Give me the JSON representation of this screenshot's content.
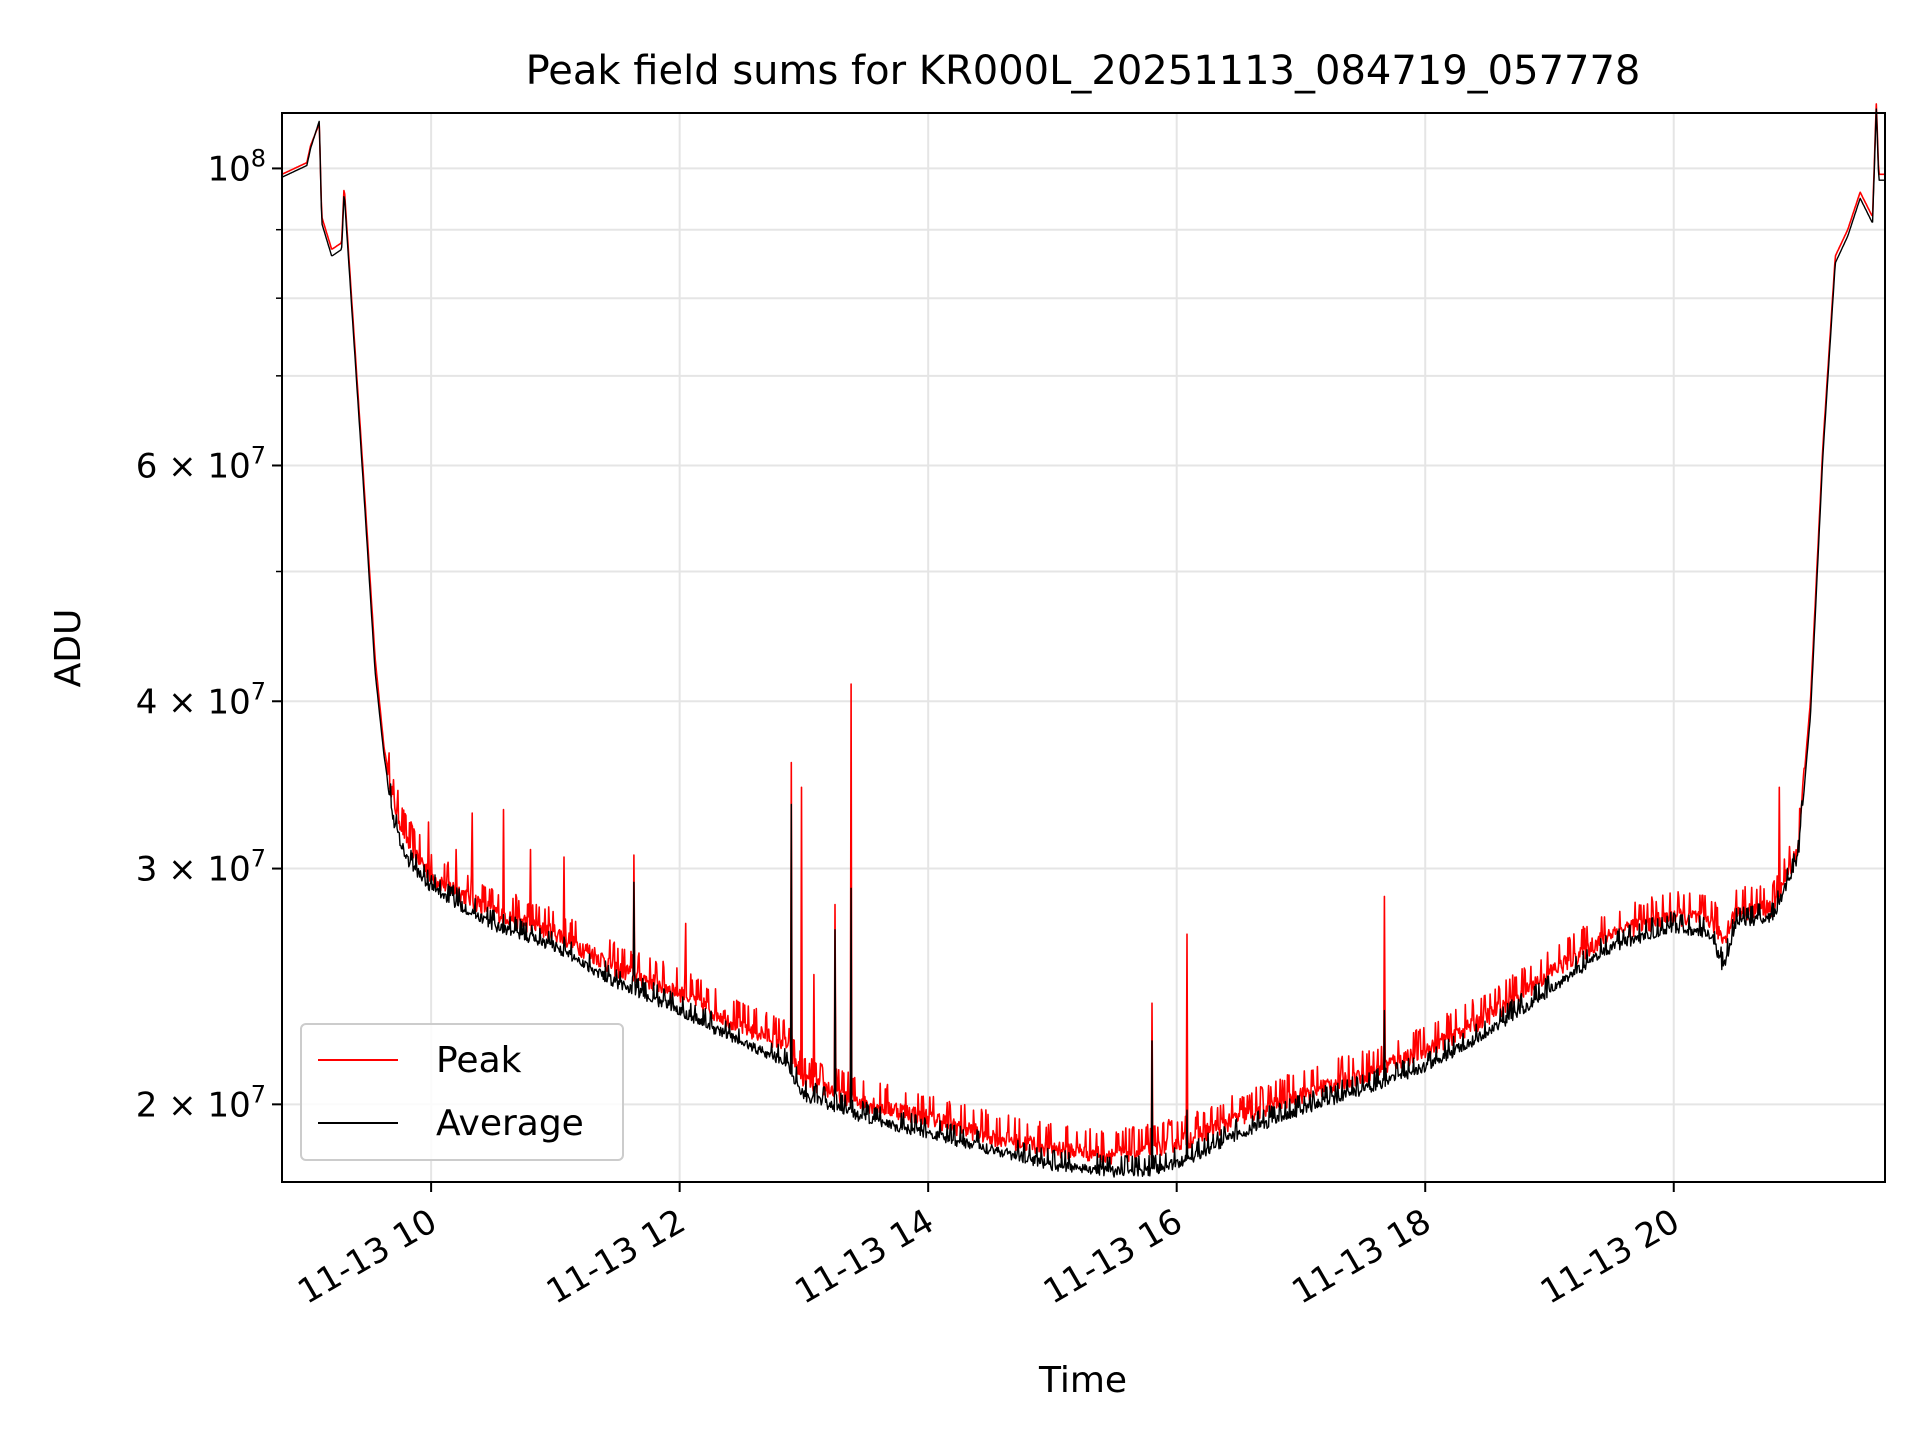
{
  "chart_data": {
    "type": "line",
    "title": "Peak field sums for KR000L_20251113_084719_057778",
    "xlabel": "Time",
    "ylabel": "ADU",
    "yscale": "log",
    "xlim": [
      8.8,
      21.7
    ],
    "ylim": [
      17500000,
      110000000
    ],
    "grid": true,
    "legend_position": "lower-left",
    "x_ticks": [
      {
        "value": 10,
        "label": "11-13 10"
      },
      {
        "value": 12,
        "label": "11-13 12"
      },
      {
        "value": 14,
        "label": "11-13 14"
      },
      {
        "value": 16,
        "label": "11-13 16"
      },
      {
        "value": 18,
        "label": "11-13 18"
      },
      {
        "value": 20,
        "label": "11-13 20"
      }
    ],
    "y_ticks": [
      {
        "value": 20000000,
        "label": "2 × 10⁷",
        "mant": "2",
        "exp": "7"
      },
      {
        "value": 30000000,
        "label": "3 × 10⁷",
        "mant": "3",
        "exp": "7"
      },
      {
        "value": 40000000,
        "label": "4 × 10⁷",
        "mant": "4",
        "exp": "7"
      },
      {
        "value": 60000000,
        "label": "6 × 10⁷",
        "mant": "6",
        "exp": "7"
      },
      {
        "value": 100000000,
        "label": "10⁸",
        "mant": "",
        "exp": "8"
      }
    ],
    "y_minor_ticks": [
      50000000,
      70000000,
      80000000,
      90000000
    ],
    "series": [
      {
        "name": "Peak",
        "color": "#ff0000",
        "baseline": [
          [
            8.8,
            99000000
          ],
          [
            9.0,
            101000000
          ],
          [
            9.03,
            104000000
          ],
          [
            9.1,
            108000000
          ],
          [
            9.12,
            92000000
          ],
          [
            9.2,
            87000000
          ],
          [
            9.28,
            88000000
          ],
          [
            9.3,
            97000000
          ],
          [
            9.45,
            60000000
          ],
          [
            9.55,
            43000000
          ],
          [
            9.62,
            37000000
          ],
          [
            9.7,
            33500000
          ],
          [
            9.8,
            31500000
          ],
          [
            10.0,
            29500000
          ],
          [
            10.5,
            27800000
          ],
          [
            11.0,
            26800000
          ],
          [
            11.5,
            25200000
          ],
          [
            12.0,
            24200000
          ],
          [
            12.5,
            22800000
          ],
          [
            12.85,
            22200000
          ],
          [
            13.0,
            20800000
          ],
          [
            13.5,
            20000000
          ],
          [
            14.0,
            19500000
          ],
          [
            14.5,
            18900000
          ],
          [
            15.0,
            18500000
          ],
          [
            15.5,
            18300000
          ],
          [
            15.8,
            18500000
          ],
          [
            16.1,
            18800000
          ],
          [
            16.5,
            19500000
          ],
          [
            17.0,
            20300000
          ],
          [
            17.5,
            21000000
          ],
          [
            18.0,
            21900000
          ],
          [
            18.5,
            23200000
          ],
          [
            19.0,
            25000000
          ],
          [
            19.5,
            26800000
          ],
          [
            20.0,
            27600000
          ],
          [
            20.3,
            27400000
          ],
          [
            20.4,
            26500000
          ],
          [
            20.5,
            27800000
          ],
          [
            20.8,
            28000000
          ],
          [
            21.0,
            31000000
          ],
          [
            21.1,
            40000000
          ],
          [
            21.2,
            62000000
          ],
          [
            21.3,
            86000000
          ],
          [
            21.4,
            90000000
          ],
          [
            21.5,
            96000000
          ],
          [
            21.6,
            92000000
          ],
          [
            21.63,
            112000000
          ],
          [
            21.65,
            99000000
          ],
          [
            21.7,
            99000000
          ]
        ],
        "spikes": [
          [
            9.98,
            32500000
          ],
          [
            10.2,
            31000000
          ],
          [
            10.33,
            33000000
          ],
          [
            10.58,
            33200000
          ],
          [
            10.8,
            31000000
          ],
          [
            11.07,
            30600000
          ],
          [
            11.63,
            30700000
          ],
          [
            12.05,
            27300000
          ],
          [
            12.9,
            36000000
          ],
          [
            12.98,
            34500000
          ],
          [
            13.08,
            25000000
          ],
          [
            13.25,
            28200000
          ],
          [
            13.38,
            41200000
          ],
          [
            15.8,
            23800000
          ],
          [
            16.08,
            26800000
          ],
          [
            17.67,
            28600000
          ],
          [
            20.85,
            34500000
          ]
        ],
        "noise": 0.035
      },
      {
        "name": "Average",
        "color": "#000000",
        "baseline": [
          [
            8.8,
            98500000
          ],
          [
            9.0,
            100500000
          ],
          [
            9.03,
            103500000
          ],
          [
            9.1,
            108500000
          ],
          [
            9.12,
            91000000
          ],
          [
            9.2,
            86000000
          ],
          [
            9.28,
            87000000
          ],
          [
            9.3,
            96000000
          ],
          [
            9.45,
            59000000
          ],
          [
            9.55,
            42000000
          ],
          [
            9.62,
            36500000
          ],
          [
            9.7,
            32500000
          ],
          [
            9.8,
            30500000
          ],
          [
            10.0,
            29000000
          ],
          [
            10.5,
            27200000
          ],
          [
            11.0,
            26200000
          ],
          [
            11.5,
            24600000
          ],
          [
            12.0,
            23500000
          ],
          [
            12.5,
            22200000
          ],
          [
            12.85,
            21500000
          ],
          [
            13.0,
            20300000
          ],
          [
            13.5,
            19500000
          ],
          [
            14.0,
            19000000
          ],
          [
            14.5,
            18500000
          ],
          [
            15.0,
            18000000
          ],
          [
            15.5,
            17800000
          ],
          [
            15.8,
            17800000
          ],
          [
            16.1,
            18200000
          ],
          [
            16.5,
            19000000
          ],
          [
            17.0,
            19800000
          ],
          [
            17.5,
            20500000
          ],
          [
            18.0,
            21300000
          ],
          [
            18.5,
            22600000
          ],
          [
            19.0,
            24300000
          ],
          [
            19.5,
            26200000
          ],
          [
            20.0,
            27100000
          ],
          [
            20.3,
            26800000
          ],
          [
            20.4,
            25200000
          ],
          [
            20.5,
            27300000
          ],
          [
            20.8,
            27600000
          ],
          [
            21.0,
            30500000
          ],
          [
            21.1,
            39000000
          ],
          [
            21.2,
            61000000
          ],
          [
            21.3,
            85000000
          ],
          [
            21.4,
            89000000
          ],
          [
            21.5,
            95000000
          ],
          [
            21.6,
            91000000
          ],
          [
            21.63,
            111000000
          ],
          [
            21.65,
            98000000
          ],
          [
            21.7,
            98000000
          ]
        ],
        "spikes": [
          [
            12.9,
            33500000
          ],
          [
            13.25,
            27000000
          ],
          [
            13.38,
            29000000
          ],
          [
            15.8,
            22300000
          ],
          [
            16.08,
            19800000
          ],
          [
            17.67,
            23500000
          ],
          [
            11.63,
            29300000
          ]
        ],
        "noise": 0.022
      }
    ]
  }
}
